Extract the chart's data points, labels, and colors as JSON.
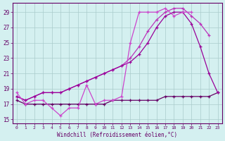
{
  "hours": [
    0,
    1,
    2,
    3,
    4,
    5,
    6,
    7,
    8,
    9,
    10,
    11,
    12,
    13,
    14,
    15,
    16,
    17,
    18,
    19,
    20,
    21,
    22,
    23
  ],
  "line_smooth1": [
    18.0,
    17.5,
    18.0,
    18.5,
    18.5,
    18.5,
    19.0,
    19.5,
    20.0,
    20.5,
    21.0,
    21.5,
    22.0,
    22.5,
    23.5,
    25.0,
    27.0,
    28.5,
    29.0,
    29.0,
    27.5,
    24.5,
    21.0,
    18.5
  ],
  "line_smooth2": [
    18.0,
    17.5,
    18.0,
    18.5,
    18.5,
    18.5,
    19.0,
    19.5,
    20.0,
    20.5,
    21.0,
    21.5,
    22.0,
    23.0,
    24.5,
    26.5,
    28.0,
    29.0,
    29.5,
    29.5,
    28.5,
    27.5,
    26.0,
    null
  ],
  "line_noisy": [
    18.5,
    17.0,
    17.5,
    17.5,
    16.5,
    15.5,
    16.5,
    16.5,
    19.5,
    17.0,
    17.5,
    17.5,
    18.0,
    25.0,
    29.0,
    29.0,
    29.0,
    29.5,
    28.5,
    29.0,
    29.0,
    null,
    null,
    null
  ],
  "line_flat": [
    17.5,
    17.0,
    17.0,
    17.0,
    17.0,
    17.0,
    17.0,
    17.0,
    17.0,
    17.0,
    17.0,
    17.5,
    17.5,
    17.5,
    17.5,
    17.5,
    17.5,
    18.0,
    18.0,
    18.0,
    18.0,
    18.0,
    18.0,
    18.5
  ],
  "color_smooth1": "#990099",
  "color_smooth2": "#bb33bb",
  "color_noisy": "#cc44cc",
  "color_flat": "#660066",
  "bg_color": "#d4f0f0",
  "grid_color": "#aacccc",
  "text_color": "#660066",
  "xlabel": "Windchill (Refroidissement éolien,°C)",
  "ylim": [
    14.5,
    30.2
  ],
  "xlim": [
    -0.5,
    23.5
  ],
  "yticks": [
    15,
    17,
    19,
    21,
    23,
    25,
    27,
    29
  ],
  "xticks": [
    0,
    1,
    2,
    3,
    4,
    5,
    6,
    7,
    8,
    9,
    10,
    11,
    12,
    13,
    14,
    15,
    16,
    17,
    18,
    19,
    20,
    21,
    22,
    23
  ],
  "figsize": [
    3.2,
    2.0
  ],
  "dpi": 100
}
